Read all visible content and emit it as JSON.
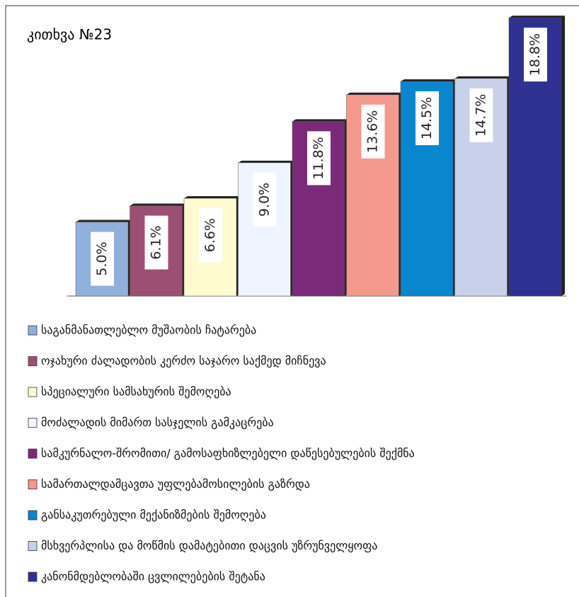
{
  "chart_data": {
    "type": "bar",
    "title": "კითხვა №23",
    "categories": [
      "საგანმანათლებლო მუშაობის ჩატარება",
      "ოჯახური ძალადობის კერძო საჯარო საქმედ მიჩნევა",
      "სპეციალური სამსახურის შემოღება",
      "მოძალადის მიმართ სასჯელის გამკაცრება",
      "სამკურნალო-შრომითი/ გამოსაფხიზლებელი დაწესებულების შექმნა",
      "სამართალდამცავთა უფლებამოსილების გაზრდა",
      "განსაკუთრებული მექანიზმების შემოღება",
      "მსხვერპლისა და მოწმის დამატებითი დაცვის უზრუნველყოფა",
      "კანონმდებლობაში ცვლილებების შეტანა"
    ],
    "values": [
      5.0,
      6.1,
      6.6,
      9.0,
      11.8,
      13.6,
      14.5,
      14.7,
      18.8
    ],
    "value_labels": [
      "5.0%",
      "6.1%",
      "6.6%",
      "9.0%",
      "11.8%",
      "13.6%",
      "14.5%",
      "14.7%",
      "18.8%"
    ],
    "colors": [
      "#8fb0dc",
      "#9b4f73",
      "#fffbd0",
      "#eef5ff",
      "#7b2a79",
      "#f4998e",
      "#0a86cf",
      "#c8d0ea",
      "#2e3192"
    ],
    "ylim": [
      0,
      20
    ]
  }
}
